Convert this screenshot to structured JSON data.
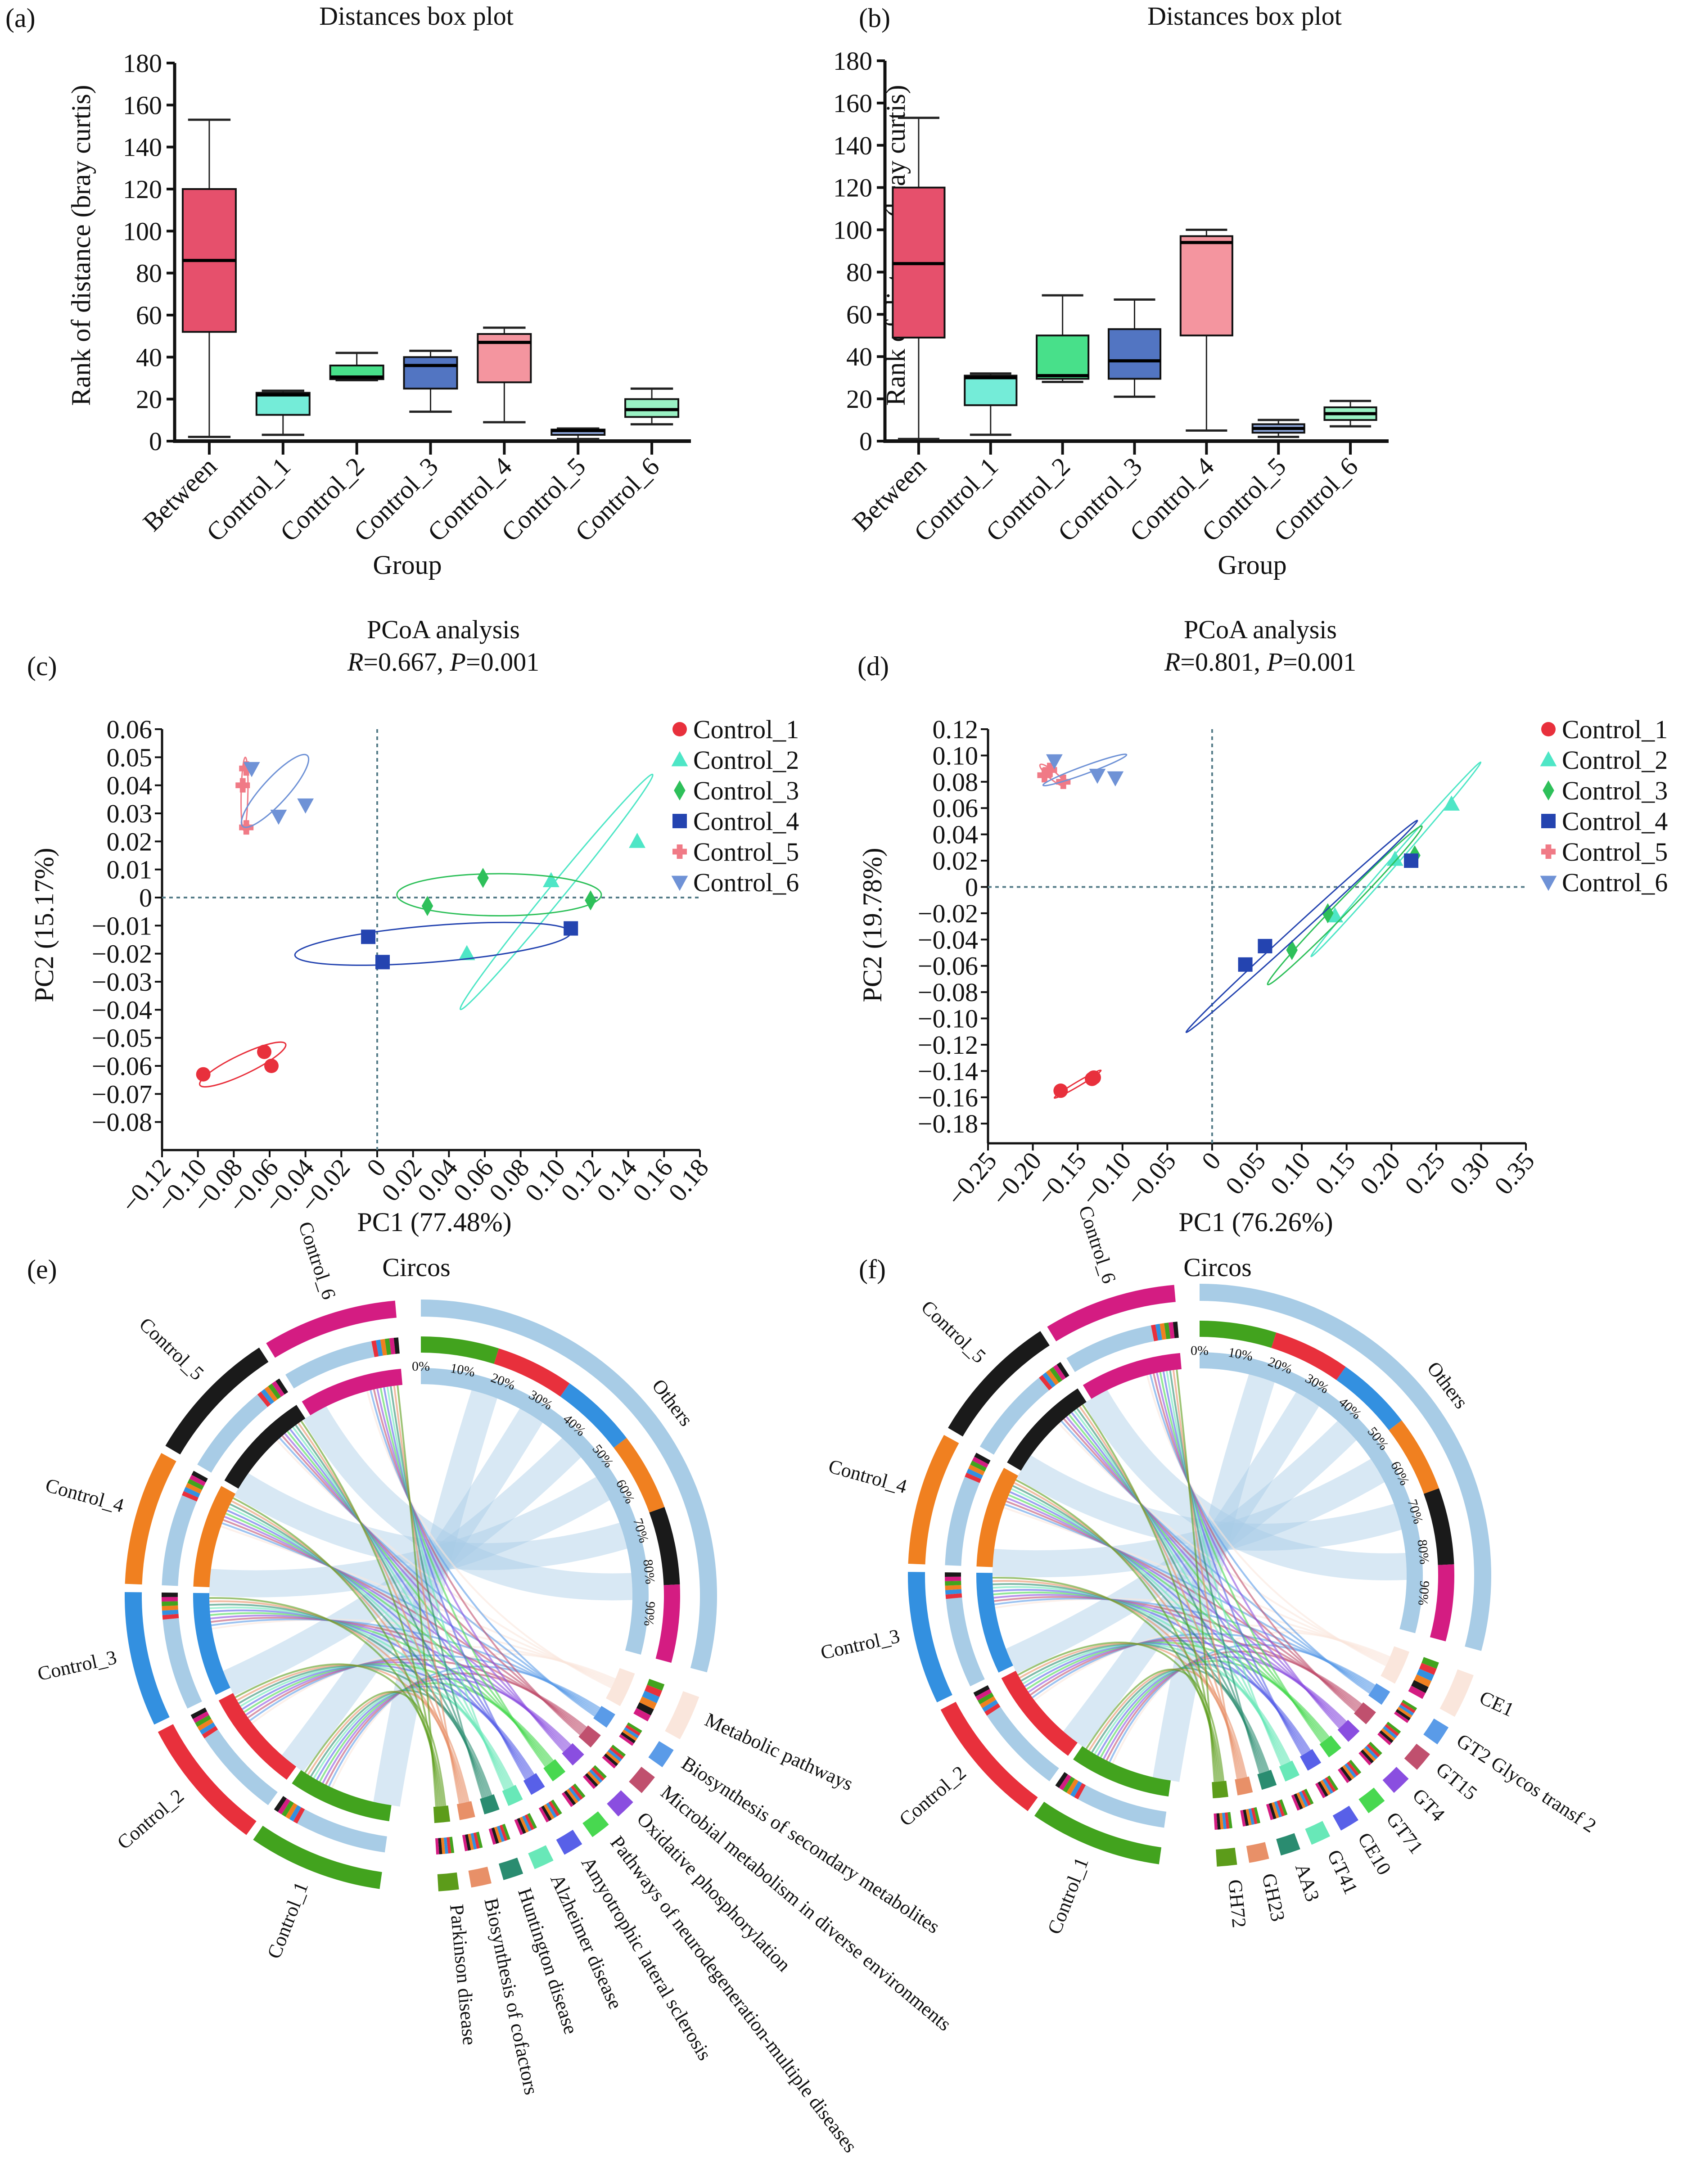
{
  "figure": {
    "panels": [
      "(a)",
      "(b)",
      "(c)",
      "(d)",
      "(e)",
      "(f)"
    ]
  },
  "chart_data": [
    {
      "panel": "(a)",
      "type": "box",
      "title": "Distances box plot",
      "xlabel": "Group",
      "ylabel": "Rank of distance (bray curtis)",
      "ylim": [
        0,
        180
      ],
      "yticks": [
        0,
        20,
        40,
        60,
        80,
        100,
        120,
        140,
        160,
        180
      ],
      "categories": [
        "Between",
        "Control_1",
        "Control_2",
        "Control_3",
        "Control_4",
        "Control_5",
        "Control_6"
      ],
      "colors": [
        "#e6506c",
        "#74ecd8",
        "#48e08a",
        "#5275c2",
        "#f4959f",
        "#8fa9df",
        "#9af2c4"
      ],
      "boxes": [
        {
          "min": 2,
          "q1": 52,
          "median": 86,
          "q3": 120,
          "max": 153
        },
        {
          "min": 3,
          "q1": 12.5,
          "median": 22,
          "q3": 23,
          "max": 24
        },
        {
          "min": 29,
          "q1": 29.5,
          "median": 30.5,
          "q3": 36,
          "max": 42
        },
        {
          "min": 14,
          "q1": 25,
          "median": 36,
          "q3": 40,
          "max": 43
        },
        {
          "min": 9,
          "q1": 28,
          "median": 47,
          "q3": 51,
          "max": 54
        },
        {
          "min": 1,
          "q1": 3,
          "median": 5,
          "q3": 5.5,
          "max": 6
        },
        {
          "min": 8,
          "q1": 11.5,
          "median": 15,
          "q3": 20,
          "max": 25
        }
      ]
    },
    {
      "panel": "(b)",
      "type": "box",
      "title": "Distances box plot",
      "xlabel": "Group",
      "ylabel": "Rank of distance (bray curtis)",
      "ylim": [
        0,
        180
      ],
      "yticks": [
        0,
        20,
        40,
        60,
        80,
        100,
        120,
        140,
        160,
        180
      ],
      "categories": [
        "Between",
        "Control_1",
        "Control_2",
        "Control_3",
        "Control_4",
        "Control_5",
        "Control_6"
      ],
      "colors": [
        "#e6506c",
        "#74ecd8",
        "#48e08a",
        "#5275c2",
        "#f4959f",
        "#8fa9df",
        "#9af2c4"
      ],
      "boxes": [
        {
          "min": 1,
          "q1": 49,
          "median": 84,
          "q3": 120,
          "max": 153
        },
        {
          "min": 3,
          "q1": 17,
          "median": 30,
          "q3": 31,
          "max": 32
        },
        {
          "min": 28,
          "q1": 29.5,
          "median": 31,
          "q3": 50,
          "max": 69
        },
        {
          "min": 21,
          "q1": 29.5,
          "median": 38,
          "q3": 53,
          "max": 67
        },
        {
          "min": 5,
          "q1": 50,
          "median": 94,
          "q3": 97,
          "max": 100
        },
        {
          "min": 2,
          "q1": 4,
          "median": 6,
          "q3": 8,
          "max": 10
        },
        {
          "min": 7,
          "q1": 10,
          "median": 13,
          "q3": 16,
          "max": 19
        }
      ]
    },
    {
      "panel": "(c)",
      "type": "scatter",
      "title": "PCoA analysis",
      "subtitle_r": "0.667",
      "subtitle_p": "0.001",
      "xlabel": "PC1 (77.48%)",
      "ylabel": "PC2 (15.17%)",
      "xlim": [
        -0.12,
        0.18
      ],
      "ylim": [
        -0.09,
        0.06
      ],
      "xticks": [
        "-0.12",
        "-0.10",
        "-0.08",
        "-0.06",
        "-0.04",
        "-0.02",
        "0",
        "0.02",
        "0.04",
        "0.06",
        "0.08",
        "0.10",
        "0.12",
        "0.14",
        "0.16",
        "0.18"
      ],
      "yticks": [
        "0.06",
        "0.05",
        "0.04",
        "0.03",
        "0.02",
        "0.01",
        "0",
        "-0.01",
        "-0.02",
        "-0.03",
        "-0.04",
        "-0.05",
        "-0.06",
        "-0.07",
        "-0.08"
      ],
      "legend_position": "top-right",
      "series": [
        {
          "name": "Control_1",
          "marker": "circle",
          "color": "#e8303c",
          "points": [
            [
              -0.097,
              -0.063
            ],
            [
              -0.063,
              -0.055
            ],
            [
              -0.059,
              -0.06
            ]
          ],
          "ellipse": {
            "cx": -0.075,
            "cy": -0.0595,
            "rx": 0.025,
            "ry": 0.0035,
            "angle": -17
          }
        },
        {
          "name": "Control_2",
          "marker": "triangle-up",
          "color": "#4ee6c6",
          "points": [
            [
              0.05,
              -0.02
            ],
            [
              0.097,
              0.006
            ],
            [
              0.145,
              0.02
            ]
          ],
          "ellipse": {
            "cx": 0.1,
            "cy": 0.002,
            "rx": 0.068,
            "ry": 0.0028,
            "angle": -38
          }
        },
        {
          "name": "Control_3",
          "marker": "diamond",
          "color": "#2ec05a",
          "points": [
            [
              0.028,
              -0.003
            ],
            [
              0.059,
              0.007
            ],
            [
              0.119,
              -0.001
            ]
          ],
          "ellipse": {
            "cx": 0.068,
            "cy": 0.001,
            "rx": 0.057,
            "ry": 0.0075,
            "angle": 0
          }
        },
        {
          "name": "Control_4",
          "marker": "square",
          "color": "#2444b0",
          "points": [
            [
              -0.005,
              -0.014
            ],
            [
              0.003,
              -0.023
            ],
            [
              0.108,
              -0.011
            ]
          ],
          "ellipse": {
            "cx": 0.031,
            "cy": -0.0165,
            "rx": 0.077,
            "ry": 0.0065,
            "angle": -3
          }
        },
        {
          "name": "Control_5",
          "marker": "plus",
          "color": "#f07a86",
          "points": [
            [
              -0.075,
              0.04
            ],
            [
              -0.073,
              0.046
            ],
            [
              -0.073,
              0.025
            ]
          ],
          "ellipse": {
            "cx": -0.074,
            "cy": 0.037,
            "rx": 0.013,
            "ry": 0.0012,
            "angle": -88
          }
        },
        {
          "name": "Control_6",
          "marker": "triangle-down",
          "color": "#6f92d6",
          "points": [
            [
              -0.07,
              0.046
            ],
            [
              -0.055,
              0.029
            ],
            [
              -0.04,
              0.033
            ]
          ],
          "ellipse": {
            "cx": -0.057,
            "cy": 0.038,
            "rx": 0.022,
            "ry": 0.0045,
            "angle": -35
          }
        }
      ]
    },
    {
      "panel": "(d)",
      "type": "scatter",
      "title": "PCoA analysis",
      "subtitle_r": "0.801",
      "subtitle_p": "0.001",
      "xlabel": "PC1 (76.26%)",
      "ylabel": "PC2 (19.78%)",
      "xlim": [
        -0.25,
        0.35
      ],
      "ylim": [
        -0.195,
        0.12
      ],
      "xticks": [
        "-0.25",
        "-0.20",
        "-0.15",
        "-0.10",
        "-0.05",
        "0",
        "0.05",
        "0.10",
        "0.15",
        "0.20",
        "0.25",
        "0.30",
        "0.35"
      ],
      "yticks": [
        "0.12",
        "0.10",
        "0.08",
        "0.06",
        "0.04",
        "0.02",
        "0",
        "-0.02",
        "-0.04",
        "-0.06",
        "-0.08",
        "-0.10",
        "-0.12",
        "-0.14",
        "-0.16",
        "-0.18"
      ],
      "legend_position": "top-right",
      "series": [
        {
          "name": "Control_1",
          "marker": "circle",
          "color": "#e8303c",
          "points": [
            [
              -0.169,
              -0.155
            ],
            [
              -0.134,
              -0.146
            ],
            [
              -0.132,
              -0.145
            ]
          ],
          "ellipse": {
            "cx": -0.15,
            "cy": -0.15,
            "rx": 0.028,
            "ry": 0.0015,
            "angle": -22
          }
        },
        {
          "name": "Control_2",
          "marker": "triangle-up",
          "color": "#4ee6c6",
          "points": [
            [
              0.137,
              -0.022
            ],
            [
              0.204,
              0.021
            ],
            [
              0.267,
              0.063
            ]
          ],
          "ellipse": {
            "cx": 0.205,
            "cy": 0.021,
            "rx": 0.12,
            "ry": 0.003,
            "angle": -38
          }
        },
        {
          "name": "Control_3",
          "marker": "diamond",
          "color": "#2ec05a",
          "points": [
            [
              0.089,
              -0.048
            ],
            [
              0.129,
              -0.02
            ],
            [
              0.226,
              0.024
            ]
          ],
          "ellipse": {
            "cx": 0.148,
            "cy": -0.014,
            "rx": 0.105,
            "ry": 0.005,
            "angle": -35
          }
        },
        {
          "name": "Control_4",
          "marker": "square",
          "color": "#2444b0",
          "points": [
            [
              0.037,
              -0.059
            ],
            [
              0.059,
              -0.045
            ],
            [
              0.222,
              0.02
            ]
          ],
          "ellipse": {
            "cx": 0.1,
            "cy": -0.03,
            "rx": 0.152,
            "ry": 0.0035,
            "angle": -32
          }
        },
        {
          "name": "Control_5",
          "marker": "plus",
          "color": "#f07a86",
          "points": [
            [
              -0.187,
              0.085
            ],
            [
              -0.181,
              0.089
            ],
            [
              -0.166,
              0.08
            ]
          ],
          "ellipse": {
            "cx": -0.178,
            "cy": 0.085,
            "rx": 0.016,
            "ry": 0.003,
            "angle": 30
          }
        },
        {
          "name": "Control_6",
          "marker": "triangle-down",
          "color": "#6f92d6",
          "points": [
            [
              -0.176,
              0.096
            ],
            [
              -0.128,
              0.085
            ],
            [
              -0.108,
              0.083
            ]
          ],
          "ellipse": {
            "cx": -0.142,
            "cy": 0.089,
            "rx": 0.048,
            "ry": 0.003,
            "angle": -14
          }
        }
      ]
    },
    {
      "panel": "(e)",
      "type": "chord",
      "title": "Circos",
      "samples": [
        {
          "name": "Control_1",
          "color": "#42a31e"
        },
        {
          "name": "Control_2",
          "color": "#e8303c"
        },
        {
          "name": "Control_3",
          "color": "#3390e0"
        },
        {
          "name": "Control_4",
          "color": "#f08020"
        },
        {
          "name": "Control_5",
          "color": "#1a1a1a"
        },
        {
          "name": "Control_6",
          "color": "#d41c82"
        }
      ],
      "features": [
        {
          "name": "Others",
          "color": "#a8cce6"
        },
        {
          "name": "Metabolic pathways",
          "color": "#fae6dc"
        },
        {
          "name": "Biosynthesis of secondary metabolites",
          "color": "#5a9be8"
        },
        {
          "name": "Microbial metabolism in diverse environments",
          "color": "#c0506e"
        },
        {
          "name": "Oxidative phosphorylation",
          "color": "#8a4ee0"
        },
        {
          "name": "Pathways of neurodegeneration-multiple diseases",
          "color": "#48d850"
        },
        {
          "name": "Amyotrophic lateral sclerosis",
          "color": "#5860e8"
        },
        {
          "name": "Alzheimer disease",
          "color": "#68e8b8"
        },
        {
          "name": "Huntington disease",
          "color": "#2a8c70"
        },
        {
          "name": "Biosynthesis of cofactors",
          "color": "#e89068"
        },
        {
          "name": "Parkinson disease",
          "color": "#5c9c1a"
        }
      ],
      "percent_ticks": [
        "0%",
        "10%",
        "20%",
        "30%",
        "40%",
        "50%",
        "60%",
        "70%",
        "80%",
        "90%"
      ]
    },
    {
      "panel": "(f)",
      "type": "chord",
      "title": "Circos",
      "samples": [
        {
          "name": "Control_1",
          "color": "#42a31e"
        },
        {
          "name": "Control_2",
          "color": "#e8303c"
        },
        {
          "name": "Control_3",
          "color": "#3390e0"
        },
        {
          "name": "Control_4",
          "color": "#f08020"
        },
        {
          "name": "Control_5",
          "color": "#1a1a1a"
        },
        {
          "name": "Control_6",
          "color": "#d41c82"
        }
      ],
      "features": [
        {
          "name": "Others",
          "color": "#a8cce6"
        },
        {
          "name": "CE1",
          "color": "#fae6dc"
        },
        {
          "name": "GT2 Glycos transf 2",
          "color": "#5a9be8"
        },
        {
          "name": "GT15",
          "color": "#c0506e"
        },
        {
          "name": "GT4",
          "color": "#8a4ee0"
        },
        {
          "name": "GT71",
          "color": "#48d850"
        },
        {
          "name": "CE10",
          "color": "#5860e8"
        },
        {
          "name": "GT41",
          "color": "#68e8b8"
        },
        {
          "name": "AA3",
          "color": "#2a8c70"
        },
        {
          "name": "GH23",
          "color": "#e89068"
        },
        {
          "name": "GH72",
          "color": "#5c9c1a"
        }
      ],
      "percent_ticks": [
        "0%",
        "10%",
        "20%",
        "30%",
        "40%",
        "50%",
        "60%",
        "70%",
        "80%",
        "90%"
      ]
    }
  ]
}
